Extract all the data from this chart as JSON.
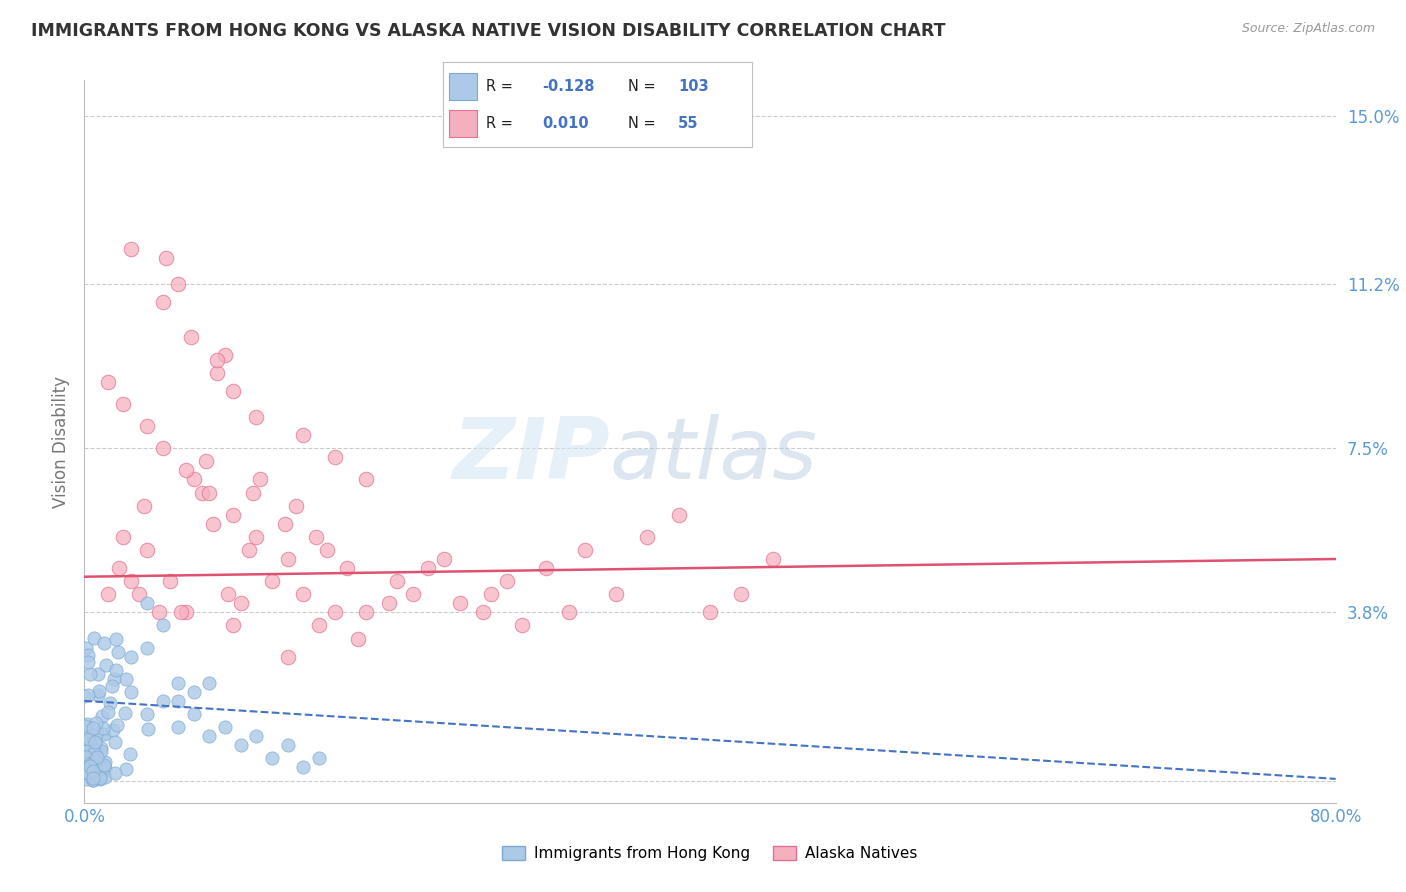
{
  "title": "IMMIGRANTS FROM HONG KONG VS ALASKA NATIVE VISION DISABILITY CORRELATION CHART",
  "source": "Source: ZipAtlas.com",
  "ylabel": "Vision Disability",
  "xlim": [
    0.0,
    0.8
  ],
  "ylim": [
    -0.005,
    0.158
  ],
  "yticks": [
    0.0,
    0.038,
    0.075,
    0.112,
    0.15
  ],
  "ytick_labels": [
    "",
    "3.8%",
    "7.5%",
    "11.2%",
    "15.0%"
  ],
  "xticks": [
    0.0,
    0.1,
    0.2,
    0.3,
    0.4,
    0.5,
    0.6,
    0.7,
    0.8
  ],
  "xtick_labels": [
    "0.0%",
    "",
    "",
    "",
    "",
    "",
    "",
    "",
    "80.0%"
  ],
  "series1_label": "Immigrants from Hong Kong",
  "series1_R": -0.128,
  "series1_N": 103,
  "series1_color": "#adc9e8",
  "series1_edge": "#7aaad0",
  "series2_label": "Alaska Natives",
  "series2_R": 0.01,
  "series2_N": 55,
  "series2_color": "#f5b0c0",
  "series2_edge": "#e07090",
  "trend1_color": "#4472c4",
  "trend2_color": "#e05070",
  "watermark_zip_color": "#c5d8ee",
  "watermark_atlas_color": "#a0b8d0",
  "background_color": "#ffffff",
  "grid_color": "#cccccc",
  "tick_color": "#5b9bd5",
  "legend_border_color": "#c0c0c0",
  "legend_R_label_color": "#333333",
  "legend_val_color": "#4472c4"
}
